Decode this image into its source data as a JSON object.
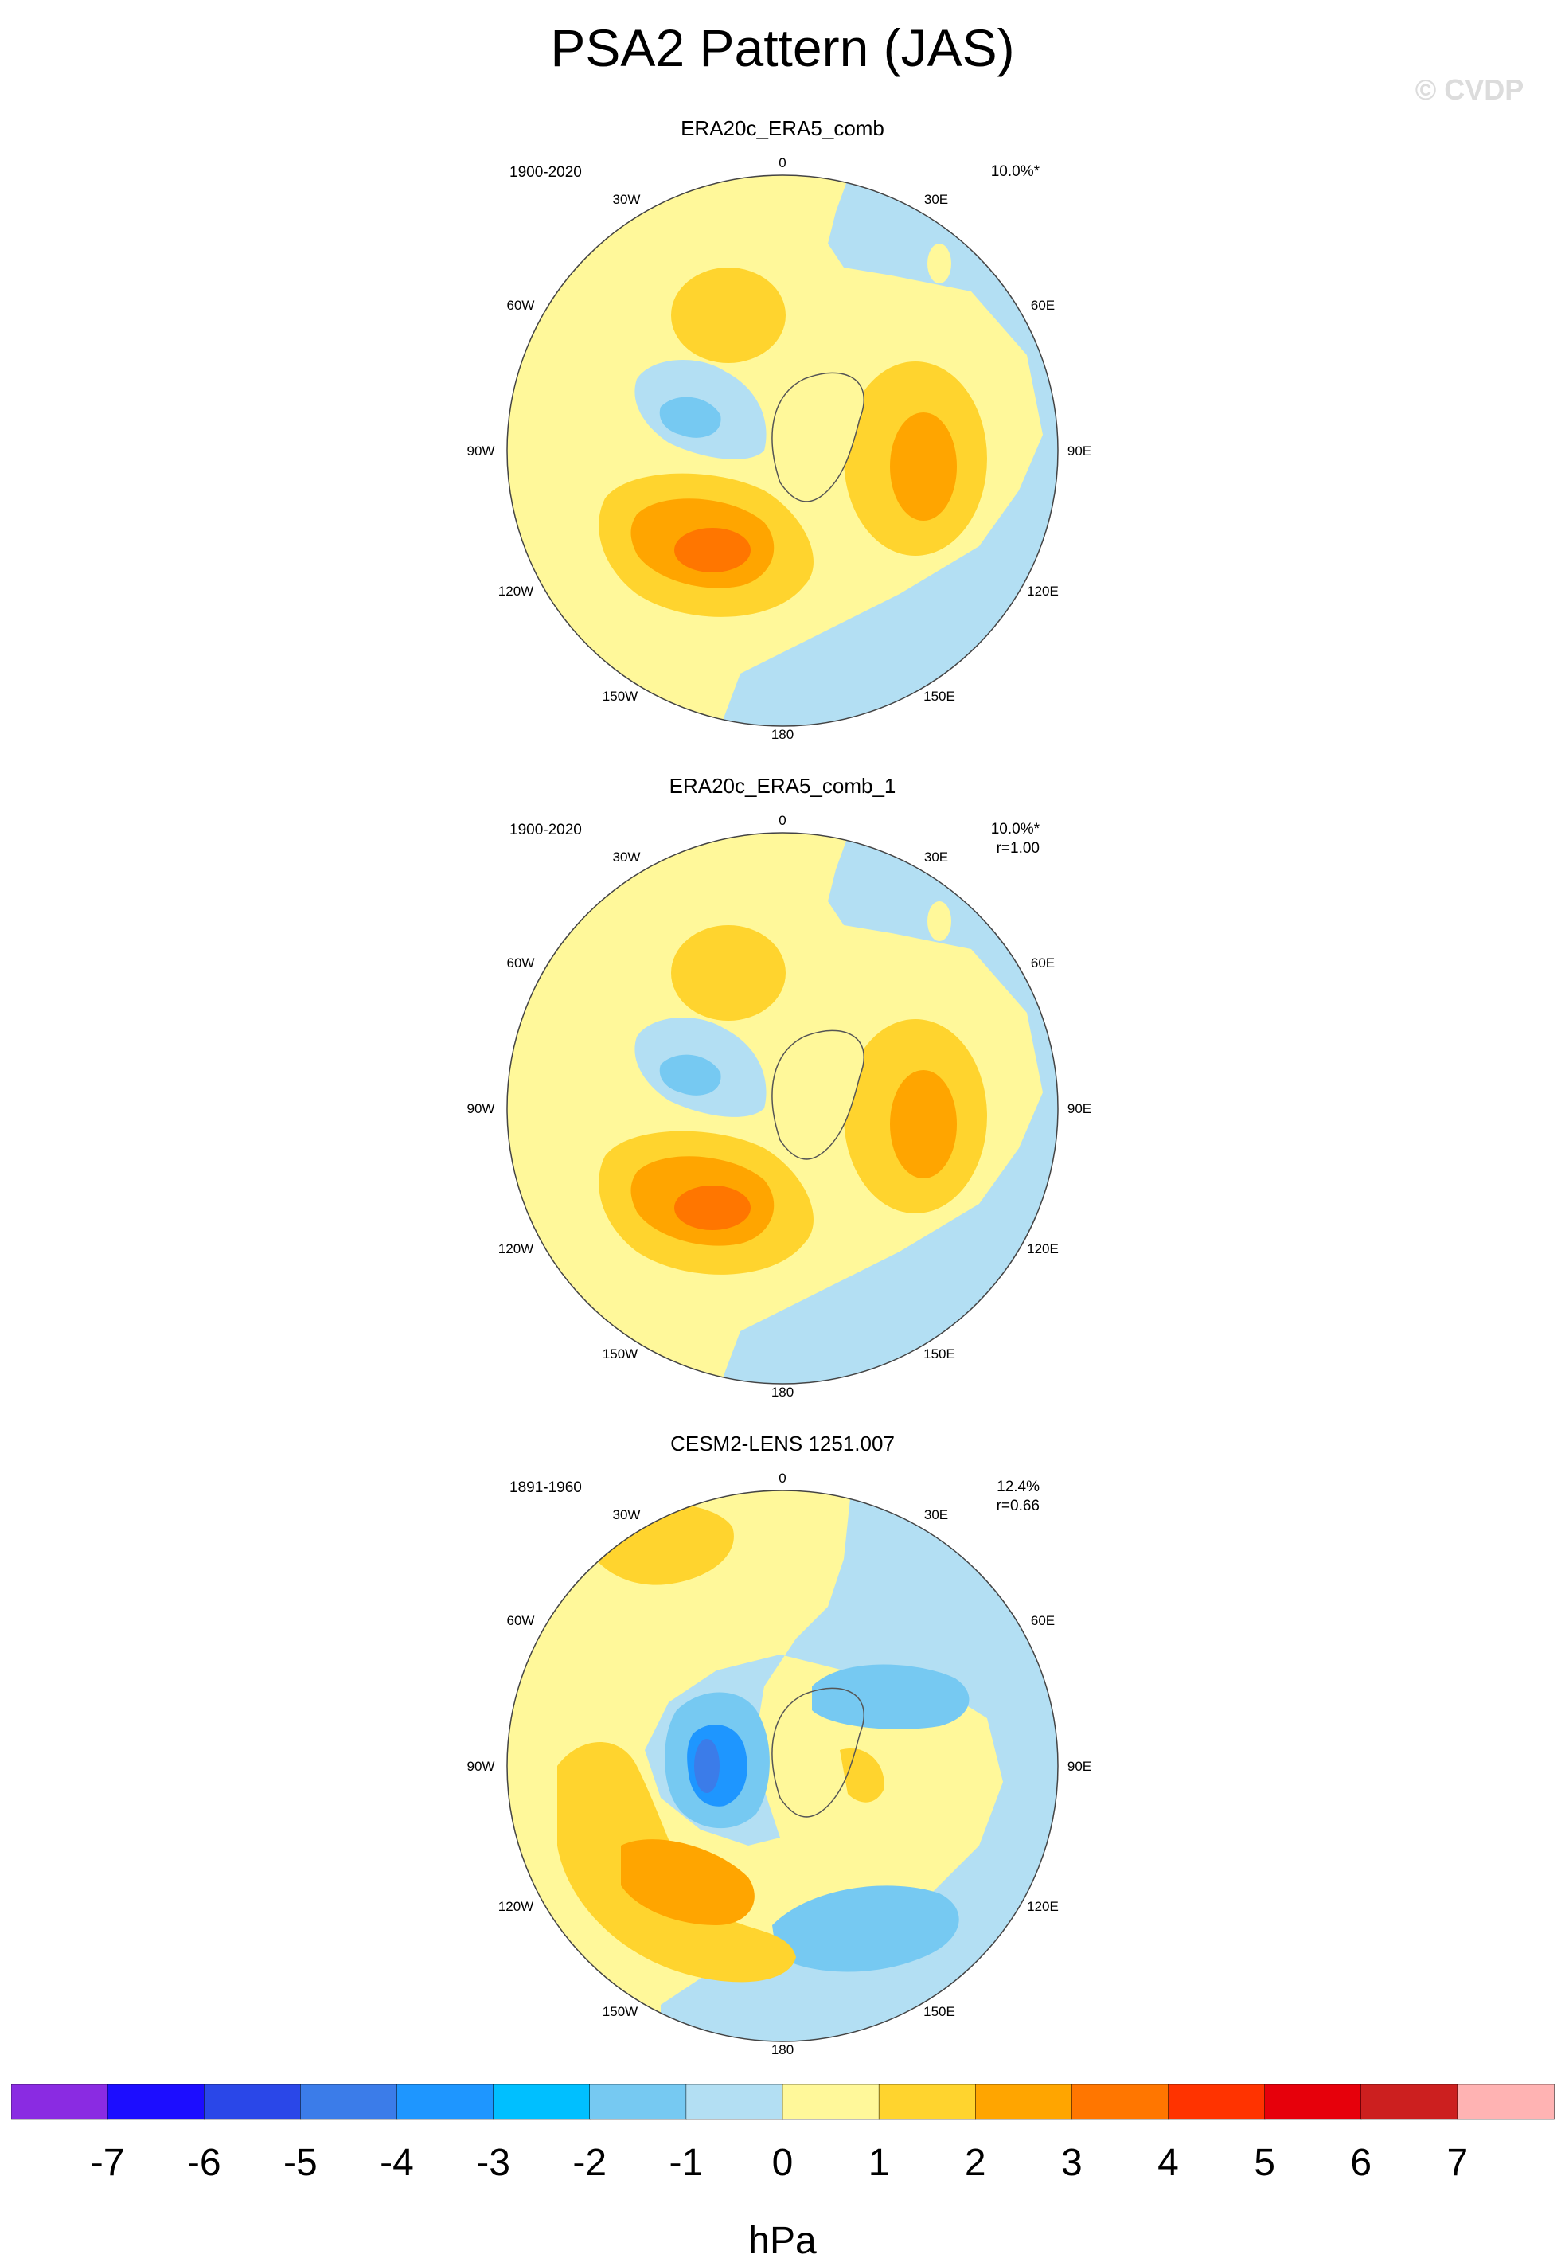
{
  "title": "PSA2 Pattern (JAS)",
  "watermark": "© CVDP",
  "colors": {
    "land_outline": "#555555",
    "map_border": "#444444",
    "levels": [
      "#8a2be2",
      "#1c0dff",
      "#2a47e8",
      "#3b7ce9",
      "#1e96ff",
      "#00bfff",
      "#76c9f2",
      "#b3dff3",
      "#fff89a",
      "#ffd42e",
      "#ffa500",
      "#ff7600",
      "#ff3300",
      "#e6000b",
      "#cc1f1f",
      "#ffb3b3"
    ]
  },
  "longitude_labels": [
    "0",
    "30E",
    "60E",
    "90E",
    "120E",
    "150E",
    "180",
    "150W",
    "120W",
    "90W",
    "60W",
    "30W"
  ],
  "panels": [
    {
      "title": "ERA20c_ERA5_comb",
      "period": "1900-2020",
      "variance": "10.0%*",
      "correlation": ""
    },
    {
      "title": "ERA20c_ERA5_comb_1",
      "period": "1900-2020",
      "variance": "10.0%*",
      "correlation": "r=1.00"
    },
    {
      "title": "CESM2-LENS 1251.007",
      "period": "1891-1960",
      "variance": "12.4%",
      "correlation": "r=0.66"
    }
  ],
  "colorbar": {
    "ticks": [
      "-7",
      "-6",
      "-5",
      "-4",
      "-3",
      "-2",
      "-1",
      "0",
      "1",
      "2",
      "3",
      "4",
      "5",
      "6",
      "7"
    ],
    "units": "hPa"
  }
}
